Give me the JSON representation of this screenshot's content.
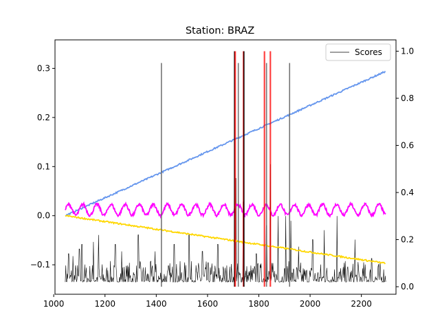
{
  "chart_data": {
    "type": "line",
    "title": "Station: BRAZ",
    "xlim": [
      1005,
      2335
    ],
    "ylim_left": [
      -0.16,
      0.358
    ],
    "ylim_right": [
      -0.032,
      1.048
    ],
    "x_ticks": [
      1000,
      1200,
      1400,
      1600,
      1800,
      2000,
      2200
    ],
    "y_left_ticks": [
      -0.1,
      0.0,
      0.1,
      0.2,
      0.3
    ],
    "y_left_tick_labels": [
      "−0.1",
      "0.0",
      "0.1",
      "0.2",
      "0.3"
    ],
    "y_right_ticks": [
      0.0,
      0.2,
      0.4,
      0.6,
      0.8,
      1.0
    ],
    "y_right_tick_labels": [
      "0.0",
      "0.2",
      "0.4",
      "0.6",
      "0.8",
      "1.0"
    ],
    "legend": {
      "entries": [
        "Scores"
      ],
      "placement": "top-right"
    },
    "series": [
      {
        "name": "Scores",
        "axis": "right",
        "color": "#000000",
        "x_start": 1045,
        "x_end": 2295,
        "baseline": 0.02,
        "spikes": [
          {
            "x": 1058,
            "y": 0.14
          },
          {
            "x": 1075,
            "y": 0.13
          },
          {
            "x": 1100,
            "y": 0.16
          },
          {
            "x": 1110,
            "y": 0.18
          },
          {
            "x": 1155,
            "y": 0.19
          },
          {
            "x": 1175,
            "y": 0.22
          },
          {
            "x": 1240,
            "y": 0.18
          },
          {
            "x": 1265,
            "y": 0.15
          },
          {
            "x": 1330,
            "y": 0.22
          },
          {
            "x": 1395,
            "y": 0.15
          },
          {
            "x": 1470,
            "y": 0.18
          },
          {
            "x": 1528,
            "y": 0.22
          },
          {
            "x": 1580,
            "y": 0.15
          },
          {
            "x": 1640,
            "y": 0.18
          },
          {
            "x": 1710,
            "y": 0.46
          },
          {
            "x": 1740,
            "y": 0.36
          },
          {
            "x": 1790,
            "y": 0.14
          },
          {
            "x": 1830,
            "y": 0.26
          },
          {
            "x": 1845,
            "y": 0.52
          },
          {
            "x": 1875,
            "y": 0.3
          },
          {
            "x": 1905,
            "y": 0.3
          },
          {
            "x": 1925,
            "y": 0.28
          },
          {
            "x": 1955,
            "y": 0.17
          },
          {
            "x": 2010,
            "y": 0.2
          },
          {
            "x": 2055,
            "y": 0.24
          },
          {
            "x": 2105,
            "y": 0.3
          },
          {
            "x": 2175,
            "y": 0.2
          },
          {
            "x": 2240,
            "y": 0.12
          }
        ]
      },
      {
        "name": "",
        "axis": "left",
        "color": "#6495ED",
        "x": [
          1045,
          2295
        ],
        "y": [
          0.0,
          0.294
        ]
      },
      {
        "name": "",
        "axis": "left",
        "color": "#FF00FF",
        "x_start": 1045,
        "x_end": 2295,
        "mean": 0.012,
        "amplitude": 0.011,
        "period": 55
      },
      {
        "name": "",
        "axis": "left",
        "color": "#FFD700",
        "x": [
          1045,
          2295
        ],
        "y": [
          0.0,
          -0.097
        ]
      }
    ],
    "vertical_lines": [
      {
        "x": 1420,
        "color": "#666666",
        "axis": "right",
        "y_top": 0.95
      },
      {
        "x": 1705,
        "color": "#000000",
        "axis": "right",
        "y_top": 1.0
      },
      {
        "x": 1708,
        "color": "#FF0000",
        "axis": "right",
        "y_top": 1.0
      },
      {
        "x": 1720,
        "color": "#666666",
        "axis": "right",
        "y_top": 0.95
      },
      {
        "x": 1740,
        "color": "#FF0000",
        "axis": "right",
        "y_top": 1.0
      },
      {
        "x": 1742,
        "color": "#000000",
        "axis": "right",
        "y_top": 1.0
      },
      {
        "x": 1822,
        "color": "#FF0000",
        "axis": "right",
        "y_top": 1.0
      },
      {
        "x": 1830,
        "color": "#666666",
        "axis": "right",
        "y_top": 0.95
      },
      {
        "x": 1845,
        "color": "#FF0000",
        "axis": "right",
        "y_top": 1.0
      },
      {
        "x": 1920,
        "color": "#666666",
        "axis": "right",
        "y_top": 0.95
      }
    ],
    "grid": false
  }
}
